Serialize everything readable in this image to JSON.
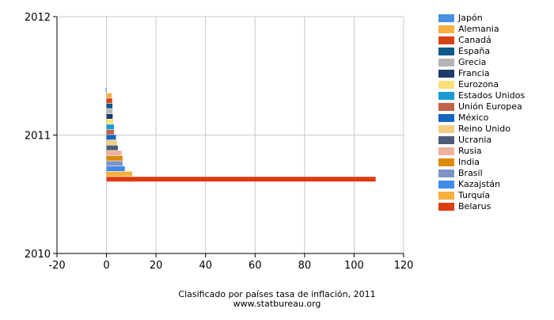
{
  "chart_data": {
    "type": "bar",
    "orientation": "horizontal",
    "title": "Clasificado por países tasa de inflación, 2011",
    "subtitle": "www.statbureau.org",
    "xlim": [
      -20,
      120
    ],
    "x_ticks": [
      "-20",
      "0",
      "20",
      "40",
      "60",
      "80",
      "100",
      "120"
    ],
    "x_tick_values": [
      -20,
      0,
      20,
      40,
      60,
      80,
      100,
      120
    ],
    "y_ticks": [
      "2012",
      "2011",
      "2010"
    ],
    "y_tick_values": [
      2012,
      2011,
      2010
    ],
    "grid": true,
    "legend_position": "right",
    "series": [
      {
        "name": "Japón",
        "value": -0.3,
        "color": "#4a90e2"
      },
      {
        "name": "Alemania",
        "value": 2.1,
        "color": "#f5b041"
      },
      {
        "name": "Canadá",
        "value": 2.3,
        "color": "#d84315"
      },
      {
        "name": "España",
        "value": 2.4,
        "color": "#0e5a8a"
      },
      {
        "name": "Grecia",
        "value": 2.4,
        "color": "#b5b5b5"
      },
      {
        "name": "Francia",
        "value": 2.5,
        "color": "#1f3a68"
      },
      {
        "name": "Eurozona",
        "value": 2.7,
        "color": "#f9df7a"
      },
      {
        "name": "Estados Unidos",
        "value": 3.0,
        "color": "#1a9ad6"
      },
      {
        "name": "Unión Europea",
        "value": 3.0,
        "color": "#c0634a"
      },
      {
        "name": "México",
        "value": 3.8,
        "color": "#1565c0"
      },
      {
        "name": "Reino Unido",
        "value": 4.2,
        "color": "#f3cd84"
      },
      {
        "name": "Ucrania",
        "value": 4.6,
        "color": "#4e5c78"
      },
      {
        "name": "Rusia",
        "value": 6.1,
        "color": "#f0b0a0"
      },
      {
        "name": "India",
        "value": 6.5,
        "color": "#dc8a0c"
      },
      {
        "name": "Brasil",
        "value": 6.5,
        "color": "#7d93c5"
      },
      {
        "name": "Kazajstán",
        "value": 7.4,
        "color": "#3f8ceb"
      },
      {
        "name": "Turquía",
        "value": 10.4,
        "color": "#f6b03c"
      },
      {
        "name": "Belarus",
        "value": 108.7,
        "color": "#dc3d12"
      }
    ]
  }
}
